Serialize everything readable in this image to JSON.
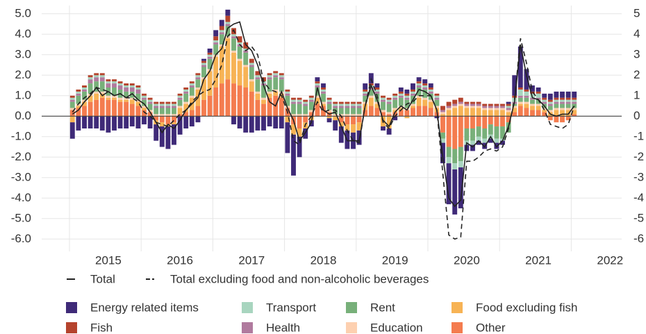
{
  "chart_data": {
    "type": "stacked_bar",
    "categories": [
      null,
      null,
      null,
      null,
      null,
      null,
      "2015",
      null,
      null,
      null,
      null,
      null,
      null,
      null,
      null,
      null,
      null,
      null,
      "2016",
      null,
      null,
      null,
      null,
      null,
      null,
      null,
      null,
      null,
      null,
      null,
      "2017",
      null,
      null,
      null,
      null,
      null,
      null,
      null,
      null,
      null,
      null,
      null,
      "2018",
      null,
      null,
      null,
      null,
      null,
      null,
      null,
      null,
      null,
      null,
      null,
      "2019",
      null,
      null,
      null,
      null,
      null,
      null,
      null,
      null,
      null,
      null,
      null,
      "2020",
      null,
      null,
      null,
      null,
      null,
      null,
      null,
      null,
      null,
      null,
      null,
      "2021",
      null,
      null,
      null,
      null,
      null,
      null,
      null,
      null,
      null,
      null,
      null,
      "2022"
    ],
    "ylim": [
      -6.6,
      5.4
    ],
    "yticks": [
      {
        "value": 5,
        "label": "5.0"
      },
      {
        "value": 4,
        "label": "4.0"
      },
      {
        "value": 3,
        "label": "3.0"
      },
      {
        "value": 2,
        "label": "2.0"
      },
      {
        "value": 1,
        "label": "1.0"
      },
      {
        "value": 0,
        "label": "0.0"
      },
      {
        "value": -1,
        "label": "-1.0"
      },
      {
        "value": -2,
        "label": "-2.0"
      },
      {
        "value": -3,
        "label": "-3.0"
      },
      {
        "value": -4,
        "label": "-4.0"
      },
      {
        "value": -5,
        "label": "-5.0"
      },
      {
        "value": -6,
        "label": "-6.0"
      }
    ],
    "y2lim": [
      -6.6,
      5.4
    ],
    "y2ticks": [
      5,
      4,
      3,
      2,
      1,
      0,
      -1,
      -2,
      -3,
      -4,
      -5,
      -6
    ],
    "grid": true,
    "series": [
      {
        "name": "Energy related items",
        "color": "#3f2a78",
        "values": [
          -0.8,
          -0.7,
          -0.6,
          -0.6,
          -0.6,
          -0.7,
          -0.8,
          -0.7,
          -0.6,
          -0.6,
          -0.5,
          -0.6,
          -0.4,
          -0.6,
          -0.8,
          -1.0,
          -1.1,
          -1.0,
          -0.9,
          -0.6,
          -0.5,
          -0.3,
          0.1,
          0.2,
          0.3,
          0.3,
          0.3,
          -0.4,
          -0.6,
          -0.8,
          -0.8,
          -0.7,
          -0.7,
          -0.5,
          -0.6,
          -0.6,
          -1.5,
          -2.0,
          -1.0,
          -0.5,
          -0.3,
          0.2,
          0.2,
          -0.2,
          -0.5,
          -0.8,
          -0.9,
          -0.8,
          -0.7,
          0.3,
          0.5,
          0.2,
          -0.2,
          -0.3,
          -0.2,
          0.2,
          0.2,
          0.3,
          0.2,
          0.2,
          0.2,
          -0.1,
          -1.0,
          -2.0,
          -2.2,
          -2.0,
          -0.3,
          -0.3,
          -0.2,
          -0.3,
          -0.2,
          -0.3,
          -0.2,
          0.1,
          1.0,
          2.0,
          1.0,
          0.3,
          0.2,
          0.2,
          0.3,
          0.3,
          0.3,
          0.3,
          0.3,
          null,
          null,
          null,
          null,
          null,
          null
        ]
      },
      {
        "name": "Fish",
        "color": "#b5432d",
        "values": [
          0.1,
          0.1,
          0.1,
          0.1,
          0.1,
          0.1,
          0.1,
          0.1,
          0.1,
          0.1,
          0.1,
          0.1,
          0.1,
          0.1,
          0.1,
          0.1,
          0.1,
          0.1,
          0.1,
          0.1,
          0.1,
          0.1,
          0.1,
          0.1,
          0.2,
          0.2,
          0.3,
          0.3,
          0.3,
          0.3,
          0.2,
          0.2,
          0.2,
          0.1,
          0.1,
          0.1,
          0.1,
          0.1,
          0.1,
          0.1,
          0.1,
          0.1,
          0.1,
          0.1,
          0.1,
          0.1,
          0.1,
          0.1,
          0.1,
          0.1,
          0.1,
          0.1,
          0.1,
          0.1,
          0.1,
          0.1,
          0.1,
          0.1,
          0.1,
          0.1,
          0.1,
          0.1,
          0.2,
          0.2,
          0.2,
          0.2,
          0.1,
          0.1,
          0.1,
          0.1,
          0.1,
          0.1,
          0.1,
          0.1,
          0.1,
          0.1,
          0.1,
          0.1,
          0.1,
          0.1,
          0.1,
          0.1,
          0.1,
          0.1,
          0.1,
          null,
          null,
          null,
          null,
          null,
          null
        ]
      },
      {
        "name": "Transport",
        "color": "#a8d5bf",
        "values": [
          0.1,
          0.1,
          0.1,
          0.1,
          0.1,
          0.1,
          0.1,
          0.1,
          0.1,
          0.1,
          0.1,
          0.1,
          0.1,
          0.1,
          0.1,
          0.1,
          0.1,
          0.1,
          0.1,
          0.1,
          0.1,
          0.1,
          0.1,
          0.1,
          0.1,
          0.1,
          0.1,
          0.1,
          0.1,
          0.1,
          0.1,
          0.1,
          0.1,
          0.1,
          0.1,
          0.1,
          0.1,
          0.1,
          0.1,
          0.1,
          0.1,
          0.1,
          0.1,
          0.1,
          0.1,
          0.1,
          0.1,
          0.1,
          0.1,
          0.1,
          0.1,
          0.1,
          0.1,
          0.1,
          0.1,
          0.1,
          0.1,
          0.1,
          0.1,
          0.1,
          0.1,
          0.1,
          -0.2,
          -0.3,
          -0.3,
          -0.3,
          -0.2,
          -0.2,
          -0.2,
          -0.2,
          -0.2,
          -0.2,
          -0.1,
          0.1,
          0.2,
          0.3,
          0.2,
          0.2,
          0.2,
          0.1,
          0.1,
          0.1,
          0.1,
          0.1,
          0.1,
          null,
          null,
          null,
          null,
          null,
          null
        ]
      },
      {
        "name": "Health",
        "color": "#b07a9e",
        "values": [
          0.1,
          0.1,
          0.1,
          0.2,
          0.2,
          0.2,
          0.2,
          0.2,
          0.2,
          0.2,
          0.2,
          0.2,
          0.1,
          0.1,
          0.1,
          0.1,
          0.1,
          0.1,
          0.1,
          0.1,
          0.1,
          0.1,
          0.1,
          0.1,
          0.1,
          0.1,
          0.1,
          0.1,
          0.1,
          0.1,
          0.1,
          0.1,
          0.1,
          0.1,
          0.1,
          0.1,
          0.1,
          0.1,
          0.1,
          0.1,
          0.1,
          0.1,
          0.1,
          0.1,
          0.1,
          0.1,
          0.1,
          0.1,
          0.1,
          0.1,
          0.1,
          0.1,
          0.1,
          0.1,
          0.1,
          0.1,
          0.1,
          0.1,
          0.1,
          0.1,
          0.1,
          0.1,
          0.1,
          0.1,
          0.1,
          0.1,
          0.1,
          0.1,
          0.1,
          0.1,
          0.1,
          0.1,
          0.1,
          0.1,
          0.1,
          0.1,
          0.1,
          0.1,
          0.1,
          0.1,
          0.1,
          0.1,
          0.1,
          0.1,
          0.1,
          null,
          null,
          null,
          null,
          null,
          null
        ]
      },
      {
        "name": "Rent",
        "color": "#78b07a",
        "values": [
          0.3,
          0.4,
          0.4,
          0.5,
          0.5,
          0.5,
          0.4,
          0.4,
          0.4,
          0.3,
          0.3,
          0.3,
          0.3,
          0.3,
          0.3,
          0.3,
          0.3,
          0.3,
          0.3,
          0.4,
          0.4,
          0.4,
          0.5,
          0.5,
          0.5,
          0.5,
          0.5,
          0.6,
          0.6,
          0.6,
          0.6,
          0.6,
          0.6,
          0.6,
          0.6,
          0.6,
          0.5,
          0.5,
          0.5,
          0.4,
          0.4,
          0.4,
          0.4,
          0.3,
          0.3,
          0.3,
          0.3,
          0.3,
          0.3,
          0.3,
          0.3,
          0.4,
          0.4,
          0.4,
          0.4,
          0.4,
          0.4,
          0.4,
          0.4,
          0.4,
          0.3,
          0.3,
          -0.3,
          -0.5,
          -0.7,
          -0.7,
          -0.6,
          -0.6,
          -0.5,
          -0.5,
          -0.5,
          -0.6,
          -0.6,
          -0.5,
          0.1,
          0.2,
          0.2,
          0.2,
          0.2,
          0.2,
          0.2,
          0.2,
          0.2,
          0.2,
          0.2,
          null,
          null,
          null,
          null,
          null,
          null
        ]
      },
      {
        "name": "Education",
        "color": "#fdd0b0",
        "values": [
          0.1,
          0.1,
          0.1,
          0.1,
          0.1,
          0.1,
          0.1,
          0.1,
          0.1,
          0.1,
          0.1,
          0.1,
          0.1,
          0.1,
          0.1,
          0.1,
          0.1,
          0.1,
          0.1,
          0.1,
          0.1,
          0.1,
          0.1,
          0.1,
          0.1,
          0.1,
          0.1,
          0.1,
          0.1,
          0.1,
          0.1,
          0.1,
          0.1,
          0.1,
          0.1,
          0.1,
          0.1,
          0.1,
          0.1,
          0.1,
          0.1,
          0.1,
          0.1,
          0.1,
          0.1,
          0.1,
          0.1,
          0.1,
          0.1,
          0.1,
          0.1,
          0.1,
          0.1,
          0.1,
          0.1,
          0.1,
          0.1,
          0.1,
          0.1,
          0.1,
          0.1,
          0.1,
          0.1,
          0.1,
          0.1,
          0.1,
          0.1,
          0.1,
          0.1,
          0.1,
          0.1,
          0.1,
          0.1,
          0.1,
          0.1,
          0.1,
          0.1,
          0.1,
          0.1,
          0.1,
          0.1,
          0.1,
          0.1,
          0.1,
          0.1,
          null,
          null,
          null,
          null,
          null,
          null
        ]
      },
      {
        "name": "Food excluding fish",
        "color": "#f7b355",
        "values": [
          -0.3,
          0.1,
          0.2,
          0.3,
          0.3,
          0.2,
          0.1,
          0.1,
          0.1,
          0.1,
          0.2,
          0.2,
          0.1,
          0.0,
          -0.2,
          -0.2,
          -0.1,
          -0.1,
          0.3,
          0.4,
          0.6,
          0.8,
          1.0,
          1.2,
          1.5,
          1.8,
          2.0,
          1.5,
          1.2,
          1.0,
          0.5,
          0.3,
          0.2,
          0.2,
          0.2,
          0.2,
          -0.3,
          -0.5,
          -0.4,
          -0.3,
          -0.2,
          0.3,
          0.1,
          -0.1,
          -0.2,
          -0.2,
          -0.3,
          -0.4,
          -0.4,
          0.3,
          0.4,
          0.2,
          -0.5,
          -0.6,
          0.1,
          0.1,
          -0.1,
          0.1,
          0.4,
          0.3,
          0.3,
          0.2,
          0.1,
          0.3,
          0.4,
          0.5,
          0.4,
          0.4,
          0.4,
          0.3,
          0.3,
          0.3,
          0.3,
          0.2,
          0.2,
          0.1,
          0.2,
          0.2,
          0.2,
          0.1,
          0.2,
          0.3,
          0.3,
          0.3,
          0.2,
          null,
          null,
          null,
          null,
          null,
          null
        ]
      },
      {
        "name": "Other",
        "color": "#f47c4f",
        "values": [
          0.3,
          0.4,
          0.5,
          0.7,
          0.8,
          0.9,
          0.8,
          0.8,
          0.7,
          0.7,
          0.6,
          0.5,
          0.3,
          0.2,
          -0.2,
          -0.3,
          -0.4,
          -0.3,
          0.1,
          0.2,
          0.3,
          0.5,
          0.8,
          1.0,
          1.4,
          1.6,
          1.8,
          1.6,
          1.5,
          1.4,
          1.2,
          0.8,
          0.6,
          0.9,
          1.0,
          0.9,
          0.4,
          -0.4,
          -0.6,
          -0.3,
          0.2,
          0.6,
          0.5,
          0.2,
          0.0,
          -0.3,
          -0.4,
          -0.4,
          -0.3,
          0.3,
          0.5,
          0.4,
          0.2,
          0.1,
          0.2,
          0.3,
          0.3,
          0.4,
          0.5,
          0.5,
          0.4,
          0.2,
          -0.8,
          -1.5,
          -1.6,
          -1.5,
          -0.6,
          -0.6,
          -0.5,
          -0.6,
          -0.4,
          -0.5,
          -0.5,
          -0.3,
          0.2,
          0.5,
          0.4,
          0.3,
          0.3,
          0.2,
          -0.2,
          -0.3,
          -0.3,
          -0.2,
          0.1,
          null,
          null,
          null,
          null,
          null,
          null
        ]
      }
    ],
    "lines": [
      {
        "name": "Total",
        "color": "#222222",
        "style": "solid",
        "values": [
          0.1,
          0.3,
          0.7,
          1.0,
          1.4,
          1.0,
          1.2,
          1.0,
          1.1,
          0.9,
          1.1,
          0.8,
          0.6,
          0.2,
          -0.3,
          -0.8,
          -0.4,
          -0.6,
          -0.2,
          0.3,
          0.6,
          0.9,
          1.8,
          2.2,
          3.0,
          3.3,
          4.3,
          4.5,
          4.6,
          3.5,
          3.2,
          2.5,
          1.5,
          0.7,
          0.5,
          1.2,
          0.4,
          -0.2,
          -1.2,
          -0.8,
          -0.3,
          1.4,
          0.3,
          0.1,
          0.2,
          -0.5,
          -1.2,
          -1.2,
          -1.2,
          0.5,
          1.5,
          0.8,
          -0.2,
          -0.5,
          0.2,
          0.5,
          0.3,
          0.8,
          1.3,
          1.2,
          1.0,
          0.3,
          -2.0,
          -4.0,
          -4.4,
          -4.1,
          -1.3,
          -1.5,
          -1.2,
          -1.5,
          -1.0,
          -1.5,
          -1.2,
          -0.5,
          0.7,
          3.5,
          2.0,
          0.9,
          0.8,
          0.5,
          0.1,
          0.0,
          0.1,
          0.1,
          0.5,
          null,
          null,
          null,
          null,
          null,
          null
        ]
      },
      {
        "name": "Total excluding food and non-alcoholic beverages",
        "color": "#222222",
        "style": "dashed",
        "values": [
          0.2,
          0.6,
          0.9,
          1.1,
          1.4,
          1.3,
          1.2,
          1.0,
          1.1,
          0.9,
          0.9,
          0.7,
          0.2,
          0.0,
          -0.3,
          -0.4,
          -0.5,
          -0.2,
          0.1,
          0.3,
          0.7,
          1.0,
          1.2,
          1.3,
          1.8,
          2.5,
          3.9,
          4.2,
          3.5,
          3.2,
          3.4,
          3.0,
          1.7,
          1.3,
          1.2,
          1.0,
          0.2,
          -1.2,
          -1.4,
          -0.4,
          0.0,
          0.7,
          0.2,
          0.3,
          0.3,
          0.0,
          -0.7,
          -1.2,
          -1.3,
          0.5,
          1.8,
          1.0,
          -0.3,
          -0.6,
          0.0,
          0.3,
          0.6,
          0.7,
          1.0,
          1.0,
          1.0,
          0.3,
          -2.8,
          -5.8,
          -6.0,
          -5.9,
          -2.2,
          -2.2,
          -2.0,
          -1.7,
          -1.6,
          -1.7,
          -1.5,
          -0.6,
          0.8,
          3.8,
          2.6,
          1.2,
          0.8,
          0.3,
          -0.4,
          -0.5,
          -0.6,
          -0.4,
          0.5,
          null,
          null,
          null,
          null,
          null,
          null
        ]
      }
    ]
  }
}
